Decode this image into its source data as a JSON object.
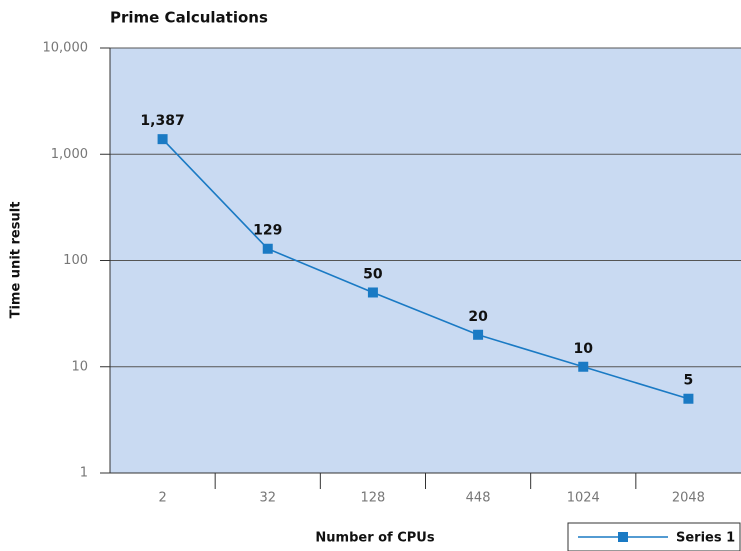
{
  "chart_data": {
    "type": "line",
    "title": "Prime Calculations",
    "x_label": "Number of CPUs",
    "y_label": "Time unit result",
    "categories": [
      "2",
      "32",
      "128",
      "448",
      "1024",
      "2048"
    ],
    "series": [
      {
        "name": "Series 1",
        "color": "#1a7ac4",
        "values": [
          1387,
          129,
          50,
          20,
          10,
          5
        ],
        "value_labels": [
          "1,387",
          "129",
          "50",
          "20",
          "10",
          "5"
        ]
      }
    ],
    "ylim": [
      1,
      10000
    ],
    "log_y": true,
    "yticks": [
      1,
      10,
      100,
      {
        "value": 1000,
        "label": "1,000"
      },
      {
        "value": 10000,
        "label": "10,000"
      }
    ],
    "grid": true,
    "legend_position": "bottom-right"
  }
}
